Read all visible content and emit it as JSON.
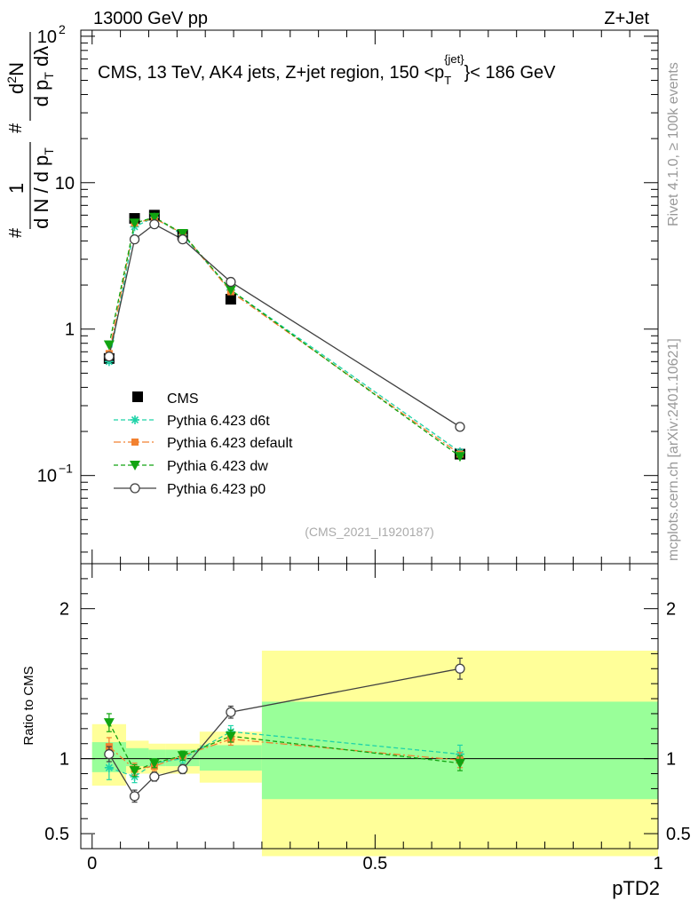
{
  "header": {
    "left": "13000 GeV pp",
    "right": "Z+Jet"
  },
  "side_labels": {
    "rivet": "Rivet 4.1.0, ≥ 100k events",
    "mcplots": "mcplots.cern.ch [arXiv:2401.10621]"
  },
  "watermark": "(CMS_2021_I1920187)",
  "colors": {
    "cms": "#000000",
    "d6t": "#1fd3a8",
    "default": "#f28130",
    "dw": "#11a411",
    "p0": "#404040",
    "band_yellow": "#ffff99",
    "band_green": "#99ff99"
  },
  "chart_data": [
    {
      "type": "line",
      "title": "CMS, 13 TeV, AK4 jets, Z+jet region, 150 <p_T^{jet}< 186 GeV",
      "title_parts": {
        "main": "CMS, 13 TeV, AK4 jets, Z+jet region, 150 <p",
        "sub": "T",
        "sup": "{jet}",
        "tail": "}< 186 GeV"
      },
      "ylabel": "1/N dN/dp_T  d²N/(dp_T dλ)",
      "yscale": "log",
      "ylim": [
        0.025,
        110
      ],
      "xlim": [
        -0.02,
        1.0
      ],
      "y_ticks": [
        {
          "value": 0.1,
          "label": "10",
          "sup": "−1"
        },
        {
          "value": 1,
          "label": "1",
          "sup": ""
        },
        {
          "value": 10,
          "label": "10",
          "sup": ""
        },
        {
          "value": 100,
          "label": "10",
          "sup": "2"
        }
      ],
      "legend_position": "center-left",
      "legend": [
        "CMS",
        "Pythia 6.423 d6t",
        "Pythia 6.423 default",
        "Pythia 6.423 dw",
        "Pythia 6.423 p0"
      ],
      "bins": [
        [
          0.0,
          0.06
        ],
        [
          0.06,
          0.1
        ],
        [
          0.1,
          0.13
        ],
        [
          0.13,
          0.19
        ],
        [
          0.19,
          0.3
        ],
        [
          0.3,
          1.0
        ]
      ],
      "x": [
        0.03,
        0.075,
        0.11,
        0.16,
        0.245,
        0.65
      ],
      "series": [
        {
          "name": "CMS",
          "key": "cms",
          "marker": "square",
          "values": [
            0.63,
            5.7,
            6.0,
            4.4,
            1.6,
            0.14
          ]
        },
        {
          "name": "Pythia 6.423 d6t",
          "key": "d6t",
          "marker": "star",
          "dash": "5,3",
          "values": [
            0.6,
            5.0,
            5.8,
            4.4,
            1.85,
            0.145
          ]
        },
        {
          "name": "Pythia 6.423 default",
          "key": "default",
          "marker": "square-small",
          "dash": "8,3,2,3",
          "values": [
            0.68,
            5.3,
            5.7,
            4.5,
            1.8,
            0.14
          ]
        },
        {
          "name": "Pythia 6.423 dw",
          "key": "dw",
          "marker": "triangle-down",
          "dash": "5,3",
          "values": [
            0.78,
            5.3,
            5.8,
            4.5,
            1.85,
            0.135
          ]
        },
        {
          "name": "Pythia 6.423 p0",
          "key": "p0",
          "marker": "circle-open",
          "dash": "",
          "values": [
            0.65,
            4.1,
            5.2,
            4.1,
            2.1,
            0.215
          ]
        }
      ]
    },
    {
      "type": "line",
      "title": "",
      "xlabel": "pTD2",
      "ylabel": "Ratio to CMS",
      "ylim": [
        0.4,
        2.3
      ],
      "xlim": [
        -0.02,
        1.0
      ],
      "y_ticks": [
        0.5,
        1,
        2
      ],
      "x_ticks": [
        {
          "value": 0,
          "label": "0"
        },
        {
          "value": 0.5,
          "label": "0.5"
        },
        {
          "value": 1,
          "label": "1"
        }
      ],
      "reference_line": 1,
      "bands": {
        "yellow": [
          [
            0.82,
            1.23
          ],
          [
            0.9,
            1.12
          ],
          [
            0.9,
            1.1
          ],
          [
            0.9,
            1.1
          ],
          [
            0.84,
            1.18
          ],
          [
            0.35,
            1.72
          ]
        ],
        "green": [
          [
            0.91,
            1.11
          ],
          [
            0.95,
            1.07
          ],
          [
            0.95,
            1.06
          ],
          [
            0.95,
            1.06
          ],
          [
            0.92,
            1.09
          ],
          [
            0.73,
            1.38
          ]
        ]
      },
      "series": [
        {
          "name": "Pythia 6.423 d6t",
          "key": "d6t",
          "values": [
            0.94,
            0.88,
            0.97,
            1.0,
            1.18,
            1.03
          ],
          "errors": [
            0.08,
            0.04,
            0.03,
            0.03,
            0.04,
            0.06
          ]
        },
        {
          "name": "Pythia 6.423 default",
          "key": "default",
          "values": [
            1.08,
            0.93,
            0.95,
            1.02,
            1.13,
            0.99
          ],
          "errors": [
            0.06,
            0.04,
            0.03,
            0.03,
            0.04,
            0.05
          ]
        },
        {
          "name": "Pythia 6.423 dw",
          "key": "dw",
          "values": [
            1.24,
            0.92,
            0.97,
            1.02,
            1.15,
            0.97
          ],
          "errors": [
            0.06,
            0.04,
            0.03,
            0.03,
            0.04,
            0.05
          ]
        },
        {
          "name": "Pythia 6.423 p0",
          "key": "p0",
          "values": [
            1.03,
            0.75,
            0.88,
            0.93,
            1.31,
            1.6
          ],
          "errors": [
            0.05,
            0.04,
            0.03,
            0.03,
            0.04,
            0.07
          ]
        }
      ]
    }
  ]
}
